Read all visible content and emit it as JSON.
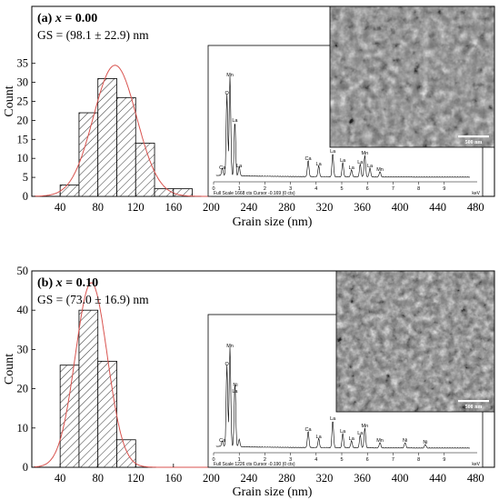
{
  "chart_data": [
    {
      "type": "bar",
      "panel_label": "(a)",
      "panel_var": "x",
      "panel_eq": " = 0.00",
      "gs_text": "GS = (98.1 ± 22.9) nm",
      "xlabel": "Grain size (nm)",
      "ylabel": "Count",
      "xlim": [
        10,
        500
      ],
      "ylim": [
        0,
        50
      ],
      "xticks": [
        40,
        80,
        120,
        160,
        200,
        240,
        280,
        320,
        360,
        400,
        440,
        480
      ],
      "yticks": [
        0,
        5,
        10,
        15,
        20,
        25,
        30,
        35
      ],
      "bin_width": 20,
      "bin_starts": [
        40,
        60,
        80,
        100,
        120,
        140,
        160
      ],
      "values": [
        3,
        22,
        31,
        26,
        14,
        2,
        2
      ],
      "fit": {
        "type": "gaussian",
        "mean": 98.1,
        "sigma": 22.9,
        "peak": 34.5
      },
      "eds": {
        "footer": "Full Scale 1668 cts Cursor -0.169 (0 cts)",
        "unit": "keV",
        "kev_ticks": [
          0,
          1,
          2,
          3,
          4,
          5,
          6,
          7,
          8,
          9
        ],
        "labels": [
          {
            "text": "O",
            "kev": 0.52
          },
          {
            "text": "Mn",
            "kev": 0.64
          },
          {
            "text": "La",
            "kev": 0.83
          },
          {
            "text": "Ca",
            "kev": 0.34
          },
          {
            "text": "La",
            "kev": 1.0
          },
          {
            "text": "Ca",
            "kev": 3.69
          },
          {
            "text": "La",
            "kev": 4.1
          },
          {
            "text": "La",
            "kev": 4.65
          },
          {
            "text": "La",
            "kev": 5.04
          },
          {
            "text": "La",
            "kev": 5.38
          },
          {
            "text": "Mn",
            "kev": 5.9
          },
          {
            "text": "La",
            "kev": 5.72
          },
          {
            "text": "La",
            "kev": 6.1
          },
          {
            "text": "Mn",
            "kev": 6.49
          }
        ]
      },
      "scale_bar": "500 nm"
    },
    {
      "type": "bar",
      "panel_label": "(b)",
      "panel_var": "x",
      "panel_eq": " = 0.10",
      "gs_text": "GS = (73.0 ± 16.9) nm",
      "xlabel": "Grain size (nm)",
      "ylabel": "Count",
      "xlim": [
        10,
        500
      ],
      "ylim": [
        0,
        50
      ],
      "xticks": [
        40,
        80,
        120,
        160,
        200,
        240,
        280,
        320,
        360,
        400,
        440,
        480
      ],
      "yticks": [
        0,
        10,
        20,
        30,
        40,
        50
      ],
      "bin_width": 20,
      "bin_starts": [
        40,
        60,
        80,
        100
      ],
      "values": [
        26,
        40,
        27,
        7
      ],
      "fit": {
        "type": "gaussian",
        "mean": 73.0,
        "sigma": 16.9,
        "peak": 47
      },
      "eds": {
        "footer": "Full Scale 1226 cts Cursor -0.190 (0 cts)",
        "unit": "keV",
        "kev_ticks": [
          0,
          1,
          2,
          3,
          4,
          5,
          6,
          7,
          8,
          9
        ],
        "labels": [
          {
            "text": "O",
            "kev": 0.52
          },
          {
            "text": "Mn",
            "kev": 0.64
          },
          {
            "text": "La",
            "kev": 0.83
          },
          {
            "text": "Ca",
            "kev": 0.34
          },
          {
            "text": "Ni",
            "kev": 0.85
          },
          {
            "text": "Ca",
            "kev": 3.69
          },
          {
            "text": "La",
            "kev": 4.1
          },
          {
            "text": "La",
            "kev": 4.65
          },
          {
            "text": "La",
            "kev": 5.04
          },
          {
            "text": "La",
            "kev": 5.38
          },
          {
            "text": "Mn",
            "kev": 5.9
          },
          {
            "text": "La",
            "kev": 5.72
          },
          {
            "text": "Mn",
            "kev": 6.49
          },
          {
            "text": "Ni",
            "kev": 7.47
          },
          {
            "text": "Ni",
            "kev": 8.26
          }
        ]
      },
      "scale_bar": "500 nm"
    }
  ],
  "colors": {
    "axis": "#000000",
    "fit": "#d9534f",
    "bar_fill": "#ffffff",
    "hatch": "#000000"
  }
}
